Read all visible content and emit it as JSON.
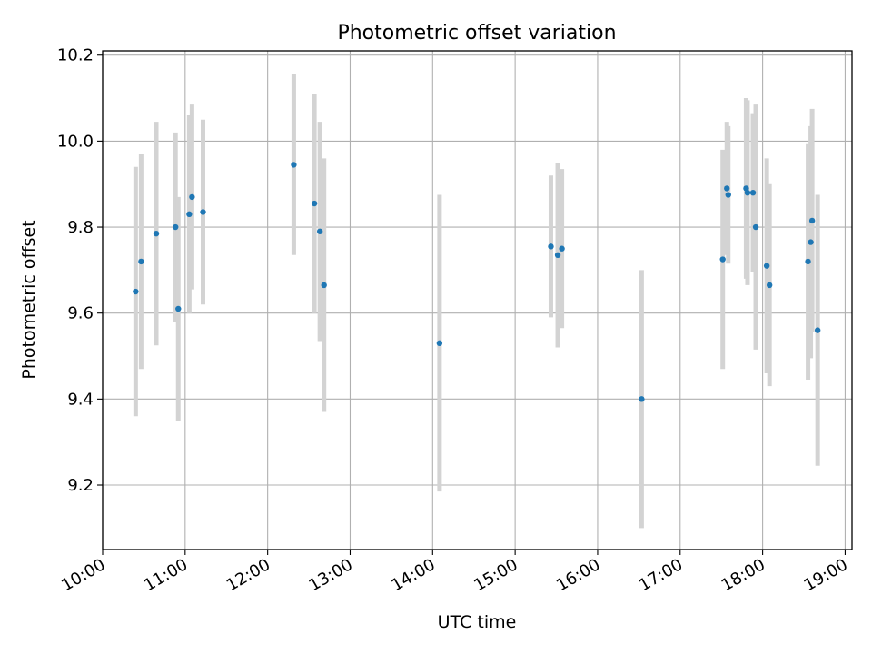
{
  "chart_data": {
    "type": "scatter",
    "title": "Photometric offset variation",
    "xlabel": "UTC time",
    "ylabel": "Photometric offset",
    "xlim": [
      "10:00",
      "19:05"
    ],
    "ylim": [
      9.05,
      10.21
    ],
    "x_ticks": [
      "10:00",
      "11:00",
      "12:00",
      "13:00",
      "14:00",
      "15:00",
      "16:00",
      "17:00",
      "18:00",
      "19:00"
    ],
    "y_ticks": [
      "9.2",
      "9.4",
      "9.6",
      "9.8",
      "10.0",
      "10.2"
    ],
    "grid": true,
    "point_color": "#1f77b4",
    "errorbar_color": "#d3d3d3",
    "points": [
      {
        "x": "10:24",
        "y": 9.65,
        "err": 0.29
      },
      {
        "x": "10:28",
        "y": 9.72,
        "err": 0.25
      },
      {
        "x": "10:39",
        "y": 9.785,
        "err": 0.26
      },
      {
        "x": "10:53",
        "y": 9.8,
        "err": 0.22
      },
      {
        "x": "10:55",
        "y": 9.61,
        "err": 0.26
      },
      {
        "x": "11:03",
        "y": 9.83,
        "err": 0.23
      },
      {
        "x": "11:05",
        "y": 9.87,
        "err": 0.215
      },
      {
        "x": "11:13",
        "y": 9.835,
        "err": 0.215
      },
      {
        "x": "12:19",
        "y": 9.945,
        "err": 0.21
      },
      {
        "x": "12:34",
        "y": 9.855,
        "err": 0.255
      },
      {
        "x": "12:38",
        "y": 9.79,
        "err": 0.255
      },
      {
        "x": "12:41",
        "y": 9.665,
        "err": 0.295
      },
      {
        "x": "14:05",
        "y": 9.53,
        "err": 0.345
      },
      {
        "x": "15:26",
        "y": 9.755,
        "err": 0.165
      },
      {
        "x": "15:31",
        "y": 9.735,
        "err": 0.215
      },
      {
        "x": "15:34",
        "y": 9.75,
        "err": 0.185
      },
      {
        "x": "16:32",
        "y": 9.4,
        "err": 0.3
      },
      {
        "x": "17:31",
        "y": 9.725,
        "err": 0.255
      },
      {
        "x": "17:34",
        "y": 9.89,
        "err": 0.155
      },
      {
        "x": "17:35",
        "y": 9.875,
        "err": 0.16
      },
      {
        "x": "17:48",
        "y": 9.89,
        "err": 0.21
      },
      {
        "x": "17:49",
        "y": 9.88,
        "err": 0.215
      },
      {
        "x": "17:53",
        "y": 9.88,
        "err": 0.185
      },
      {
        "x": "17:55",
        "y": 9.8,
        "err": 0.285
      },
      {
        "x": "18:03",
        "y": 9.71,
        "err": 0.25
      },
      {
        "x": "18:05",
        "y": 9.665,
        "err": 0.235
      },
      {
        "x": "18:33",
        "y": 9.72,
        "err": 0.275
      },
      {
        "x": "18:35",
        "y": 9.765,
        "err": 0.27
      },
      {
        "x": "18:36",
        "y": 9.815,
        "err": 0.26
      },
      {
        "x": "18:40",
        "y": 9.56,
        "err": 0.315
      }
    ]
  }
}
